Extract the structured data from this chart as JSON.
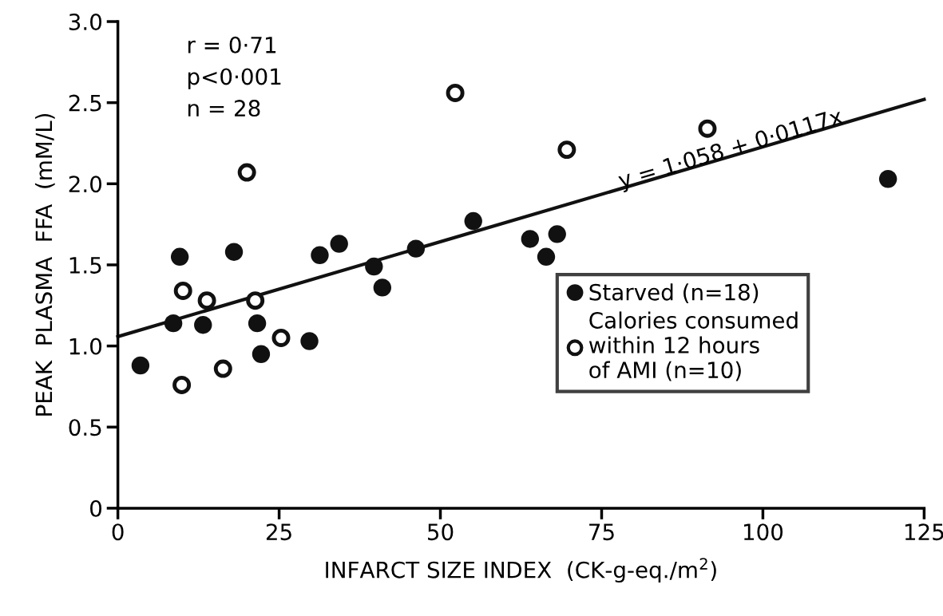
{
  "chart_data": {
    "type": "scatter",
    "xlabel": "INFARCT SIZE INDEX  (CK-g-eq./m$^{2}$)",
    "ylabel": "PEAK  PLASMA  FFA  (mM/L)",
    "xlim": [
      0,
      125
    ],
    "xticks": [
      0,
      25,
      50,
      75,
      100,
      125
    ],
    "ylim": [
      0,
      3
    ],
    "yticks": [
      {
        "value": 0,
        "label": "0"
      },
      {
        "value": 0.5,
        "label": "0.5"
      },
      {
        "value": 1,
        "label": "1.0"
      },
      {
        "value": 1.5,
        "label": "1.5"
      },
      {
        "value": 2,
        "label": "2.0"
      },
      {
        "value": 2.5,
        "label": "2.5"
      },
      {
        "value": 3,
        "label": "3.0"
      }
    ],
    "grid": false,
    "legend": "right",
    "annotations": [
      "r = 0·71",
      "p<0·001",
      "n = 28",
      {
        "text": "y = 1·058 + 0·0117x",
        "x": 78,
        "y": 1.97
      }
    ],
    "series": [
      {
        "name": "Starved (n=18)",
        "color": "#111111",
        "marker": "circle",
        "x": [
          3.5,
          9.6,
          18.0,
          8.6,
          13.2,
          21.6,
          22.2,
          29.7,
          31.3,
          34.3,
          39.7,
          41.0,
          46.2,
          55.1,
          63.9,
          68.1,
          66.4,
          119.4
        ],
        "values": [
          0.88,
          1.55,
          1.58,
          1.14,
          1.13,
          1.14,
          0.95,
          1.03,
          1.56,
          1.63,
          1.49,
          1.36,
          1.6,
          1.77,
          1.66,
          1.69,
          1.55,
          2.03
        ]
      },
      {
        "name": "Calories consumed\nwithin 12 hours\nof AMI (n=10)",
        "color": "#ffffff",
        "marker": "circle",
        "x": [
          10.1,
          13.8,
          21.3,
          25.3,
          16.3,
          9.9,
          52.3,
          69.6,
          91.4,
          20.0
        ],
        "values": [
          1.34,
          1.28,
          1.28,
          1.05,
          0.86,
          0.76,
          2.56,
          2.21,
          2.34,
          2.07
        ]
      },
      {
        "type": "line",
        "color": "#111111",
        "marker": "none",
        "x": [
          0,
          125
        ],
        "values": [
          1.058,
          2.52
        ]
      }
    ]
  }
}
